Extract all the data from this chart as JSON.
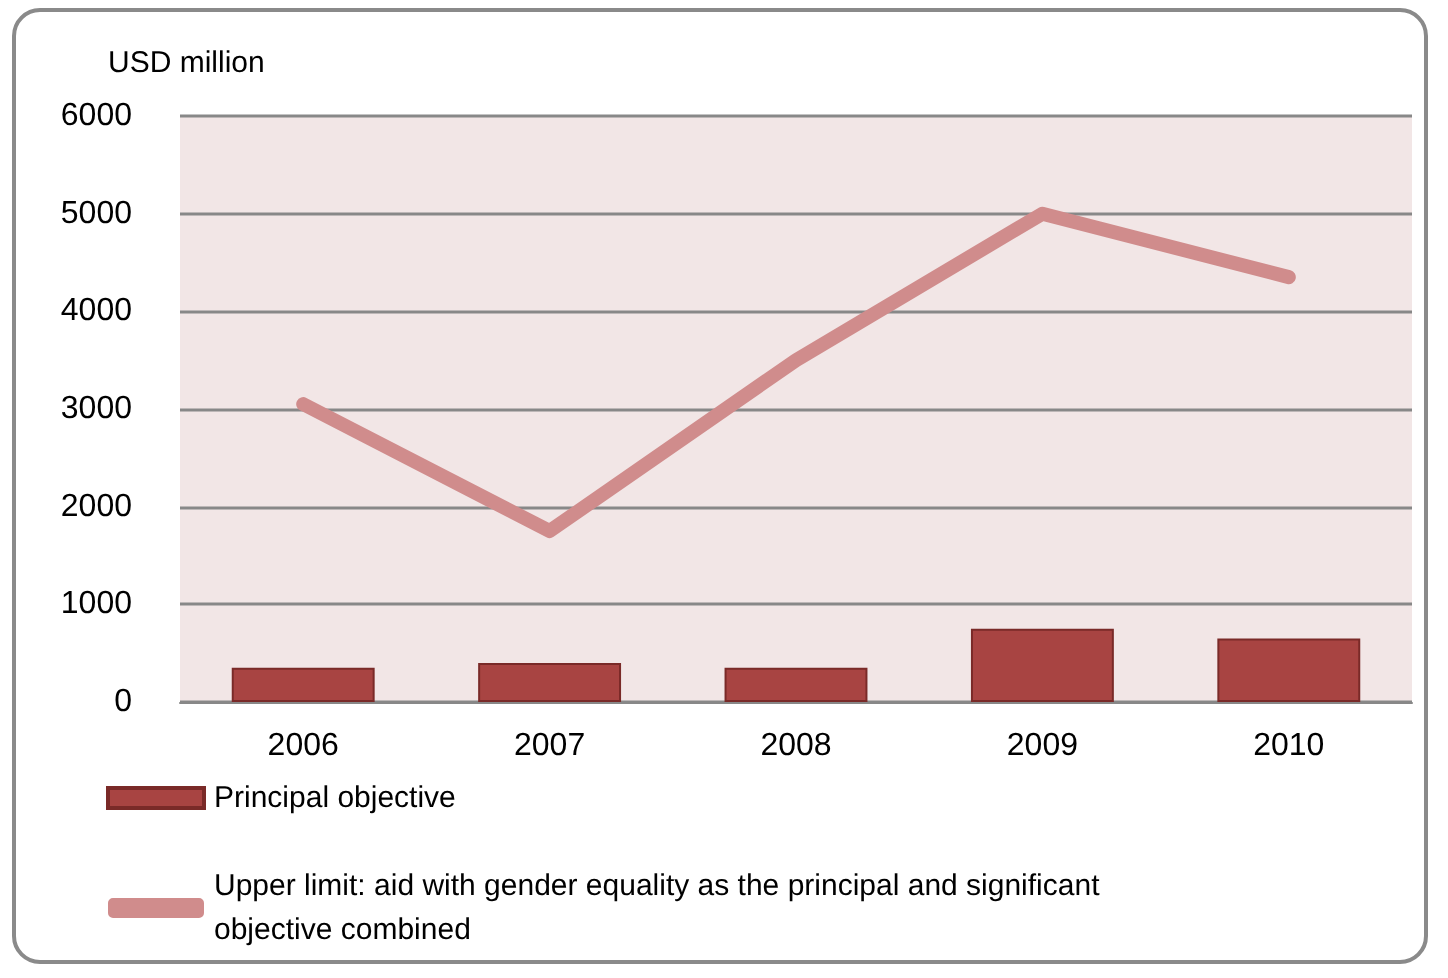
{
  "chart_data": {
    "type": "bar",
    "ylabel": "USD million",
    "categories": [
      "2006",
      "2007",
      "2008",
      "2009",
      "2010"
    ],
    "series": [
      {
        "name": "Principal objective",
        "color": "#a84442",
        "values": [
          350,
          400,
          350,
          750,
          650
        ]
      },
      {
        "name": "Upper limit: aid with gender equality as the principal and significant objective combined",
        "type": "line",
        "color": "#d08c8c",
        "values": [
          3050,
          1750,
          3500,
          5000,
          4350
        ]
      }
    ],
    "ylim": [
      0,
      6000
    ],
    "yticks": [
      0,
      1000,
      2000,
      3000,
      4000,
      5000,
      6000
    ],
    "grid": "y",
    "legend": "bottom",
    "line_style": "solid"
  }
}
